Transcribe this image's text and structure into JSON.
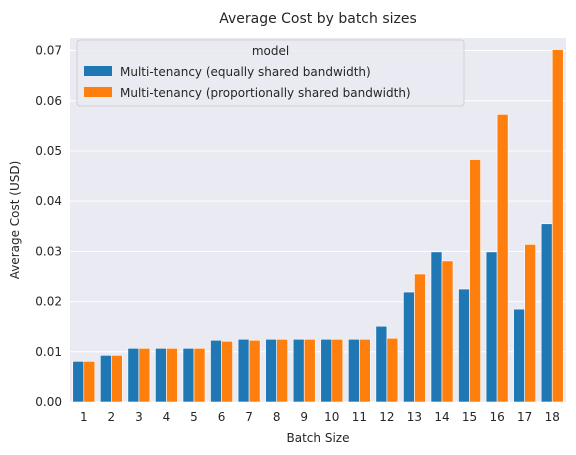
{
  "chart_data": {
    "type": "bar",
    "title": "Average Cost by batch sizes",
    "xlabel": "Batch Size",
    "ylabel": "Average Cost (USD)",
    "categories": [
      "1",
      "2",
      "3",
      "4",
      "5",
      "6",
      "7",
      "8",
      "9",
      "10",
      "11",
      "12",
      "13",
      "14",
      "15",
      "16",
      "17",
      "18"
    ],
    "ylim": [
      0,
      0.0725
    ],
    "yticks": [
      0.0,
      0.01,
      0.02,
      0.03,
      0.04,
      0.05,
      0.06,
      0.07
    ],
    "ytick_labels": [
      "0.00",
      "0.01",
      "0.02",
      "0.03",
      "0.04",
      "0.05",
      "0.06",
      "0.07"
    ],
    "grid": true,
    "legend": {
      "title": "model",
      "placement": "top-left"
    },
    "series": [
      {
        "name": "Multi-tenancy (equally shared bandwidth)",
        "color": "#1f77b4",
        "values": [
          0.0081,
          0.0093,
          0.0107,
          0.0107,
          0.0107,
          0.0123,
          0.0125,
          0.0125,
          0.0125,
          0.0125,
          0.0125,
          0.0151,
          0.0219,
          0.0299,
          0.0225,
          0.0299,
          0.0185,
          0.0355
        ]
      },
      {
        "name": "Multi-tenancy (proportionally shared bandwidth)",
        "color": "#ff7f0e",
        "values": [
          0.0081,
          0.0093,
          0.0107,
          0.0107,
          0.0107,
          0.0121,
          0.0123,
          0.0125,
          0.0125,
          0.0125,
          0.0125,
          0.0127,
          0.0255,
          0.0281,
          0.0483,
          0.0573,
          0.0314,
          0.0702
        ]
      }
    ]
  }
}
